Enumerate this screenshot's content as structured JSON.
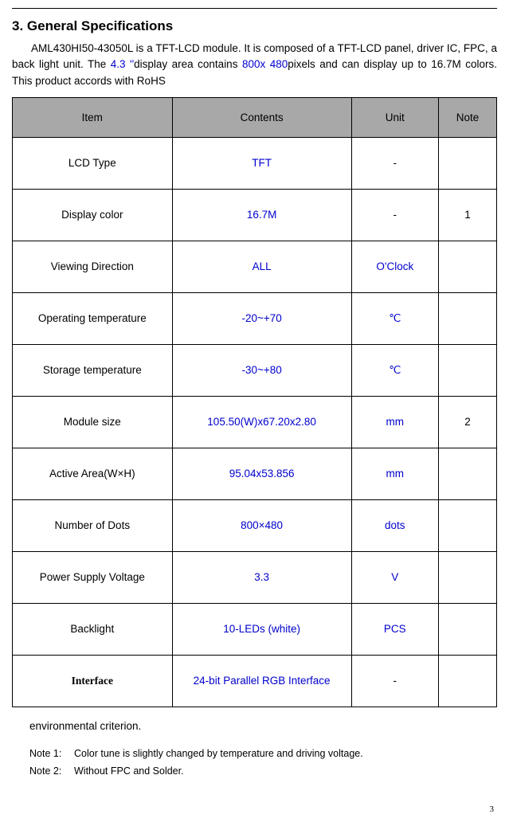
{
  "section_title": "3. General Specifications",
  "intro": {
    "part1": "AML430HI50-43050L   is a TFT-LCD module. It is composed of a TFT-LCD panel, driver IC, FPC, a back light unit. The ",
    "blue1": "4.3 ''",
    "part2": "display area contains ",
    "blue2": "800x 480",
    "part3": "pixels and can display up to 16.7M colors. This product accords with RoHS"
  },
  "table": {
    "headers": {
      "item": "Item",
      "contents": "Contents",
      "unit": "Unit",
      "note": "Note"
    },
    "rows": [
      {
        "item": "LCD Type",
        "contents": "TFT",
        "contents_blue": true,
        "unit": "-",
        "unit_blue": false,
        "note": ""
      },
      {
        "item": "Display color",
        "contents": "16.7M",
        "contents_blue": true,
        "unit": "-",
        "unit_blue": false,
        "note": "1"
      },
      {
        "item": "Viewing Direction",
        "contents": "ALL",
        "contents_blue": true,
        "unit": "O'Clock",
        "unit_blue": true,
        "note": ""
      },
      {
        "item": "Operating temperature",
        "contents": "-20~+70",
        "contents_blue": true,
        "unit": "℃",
        "unit_blue": true,
        "note": ""
      },
      {
        "item": "Storage temperature",
        "contents": "-30~+80",
        "contents_blue": true,
        "unit": "℃",
        "unit_blue": true,
        "note": ""
      },
      {
        "item": "Module size",
        "contents": "105.50(W)x67.20x2.80",
        "contents_blue": true,
        "unit": "mm",
        "unit_blue": true,
        "note": "2"
      },
      {
        "item": "Active Area(W×H)",
        "contents": "95.04x53.856",
        "contents_blue": true,
        "unit": "mm",
        "unit_blue": true,
        "note": ""
      },
      {
        "item": "Number of Dots",
        "contents": "800×480",
        "contents_blue": true,
        "unit": "dots",
        "unit_blue": true,
        "note": ""
      },
      {
        "item": "Power Supply Voltage",
        "contents": "3.3",
        "contents_blue": true,
        "unit": "V",
        "unit_blue": true,
        "note": ""
      },
      {
        "item": "Backlight",
        "contents": "10-LEDs (white)",
        "contents_blue": true,
        "unit": "PCS",
        "unit_blue": true,
        "note": ""
      },
      {
        "item": "Interface",
        "item_serif": true,
        "contents": "24-bit Parallel RGB Interface",
        "contents_blue": true,
        "unit": "-",
        "unit_blue": false,
        "note": ""
      }
    ]
  },
  "env_text": "environmental criterion.",
  "note1_label": "Note 1:",
  "note1_text": "Color tune is slightly changed by temperature and driving voltage.",
  "note2_label": "Note 2:",
  "note2_text": "Without FPC and Solder.",
  "page_number": "3"
}
